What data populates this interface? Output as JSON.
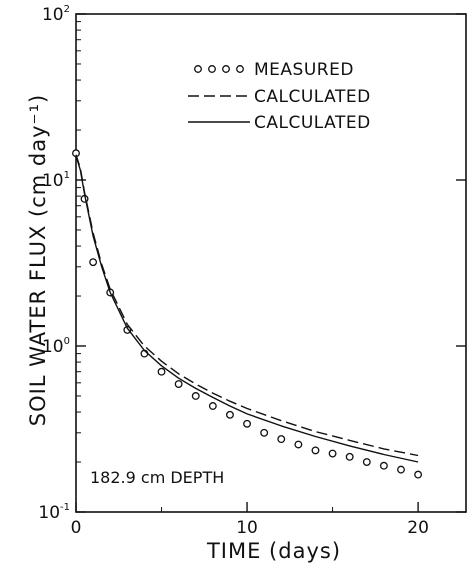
{
  "chart_data": {
    "type": "line",
    "title": "",
    "xlabel": "TIME (days)",
    "ylabel": "SOIL WATER FLUX (cm day⁻¹)",
    "xlim": [
      0,
      22.8
    ],
    "ylim": [
      0.1,
      100
    ],
    "yscale": "log",
    "x_ticks": [
      {
        "value": 0,
        "label": "0"
      },
      {
        "value": 10,
        "label": "10"
      },
      {
        "value": 20,
        "label": "20"
      }
    ],
    "y_ticks": [
      {
        "value": 0.1,
        "base": "10",
        "exp": "-1"
      },
      {
        "value": 1,
        "base": "10",
        "exp": "0"
      },
      {
        "value": 10,
        "base": "10",
        "exp": "1"
      },
      {
        "value": 100,
        "base": "10",
        "exp": "2"
      }
    ],
    "grid": false,
    "legend_position": "top-right",
    "annotation": "182.9 cm DEPTH",
    "series": [
      {
        "name": "MEASURED",
        "style": "circles",
        "x": [
          0,
          0.5,
          1,
          2,
          3,
          4,
          5,
          6,
          7,
          8,
          9,
          10,
          11,
          12,
          13,
          14,
          15,
          16,
          17,
          18,
          19,
          20
        ],
        "y": [
          14.5,
          7.7,
          3.2,
          2.1,
          1.25,
          0.9,
          0.7,
          0.59,
          0.5,
          0.435,
          0.385,
          0.34,
          0.3,
          0.275,
          0.255,
          0.235,
          0.225,
          0.215,
          0.2,
          0.19,
          0.18,
          0.168
        ]
      },
      {
        "name": "CALCULATED",
        "style": "dashed",
        "x": [
          0,
          0.25,
          0.5,
          1,
          1.5,
          2,
          3,
          4,
          5,
          6,
          7,
          8,
          9,
          10,
          12,
          14,
          16,
          18,
          20
        ],
        "y": [
          14.2,
          11.8,
          8.4,
          4.8,
          3.1,
          2.2,
          1.35,
          1.0,
          0.81,
          0.68,
          0.59,
          0.52,
          0.465,
          0.42,
          0.355,
          0.305,
          0.27,
          0.24,
          0.219
        ]
      },
      {
        "name": "CALCULATED",
        "style": "solid",
        "x": [
          0,
          0.25,
          0.5,
          1,
          1.5,
          2,
          3,
          4,
          5,
          6,
          7,
          8,
          9,
          10,
          12,
          14,
          16,
          18,
          20
        ],
        "y": [
          14.0,
          11.5,
          8.2,
          4.6,
          3.0,
          2.1,
          1.28,
          0.94,
          0.76,
          0.64,
          0.555,
          0.49,
          0.435,
          0.39,
          0.33,
          0.285,
          0.25,
          0.222,
          0.2
        ]
      }
    ]
  }
}
